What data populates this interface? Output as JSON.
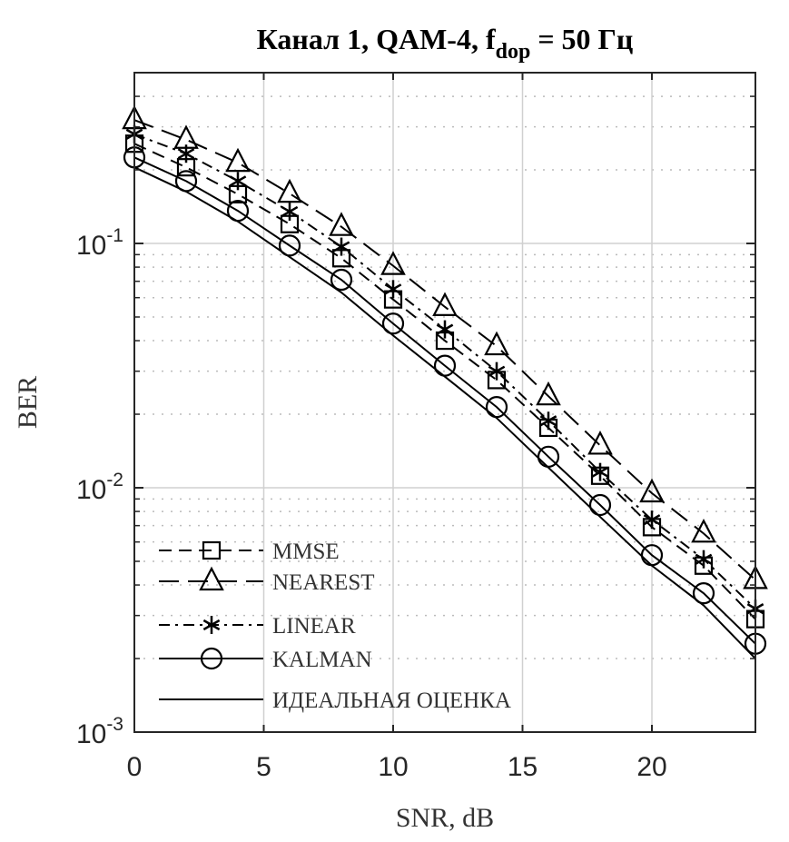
{
  "chart_data": {
    "type": "line",
    "title": {
      "main": "Канал 1, QAM-4, f",
      "sub": "dop",
      "rest": " = 50 Гц"
    },
    "xlabel": "SNR, dB",
    "ylabel": "BER",
    "xlim": [
      0,
      24
    ],
    "ylim": [
      0.001,
      0.5
    ],
    "yscale": "log",
    "grid": true,
    "x_ticks": [
      "0",
      "5",
      "10",
      "15",
      "20"
    ],
    "x_tick_values": [
      0,
      5,
      10,
      15,
      20
    ],
    "y_ticks": [
      {
        "base": "10",
        "exp": "-1",
        "value": 0.1
      },
      {
        "base": "10",
        "exp": "-2",
        "value": 0.01
      },
      {
        "base": "10",
        "exp": "-3",
        "value": 0.001
      }
    ],
    "legend_position": "bottom-left",
    "x": [
      0,
      2,
      4,
      6,
      8,
      10,
      12,
      14,
      16,
      18,
      20,
      22,
      24
    ],
    "series": [
      {
        "name": "MMSE",
        "marker": "square",
        "dash": "dashed",
        "values": [
          0.256,
          0.205,
          0.159,
          0.12,
          0.087,
          0.059,
          0.04,
          0.0276,
          0.0176,
          0.0112,
          0.0069,
          0.0048,
          0.0029
        ]
      },
      {
        "name": "NEAREST",
        "marker": "triangle",
        "dash": "longdash",
        "values": [
          0.32,
          0.266,
          0.214,
          0.16,
          0.117,
          0.081,
          0.055,
          0.038,
          0.0237,
          0.0149,
          0.0095,
          0.0065,
          0.0042
        ]
      },
      {
        "name": "LINEAR",
        "marker": "star",
        "dash": "dashdot",
        "values": [
          0.28,
          0.233,
          0.18,
          0.135,
          0.097,
          0.065,
          0.0445,
          0.03,
          0.0188,
          0.0116,
          0.0074,
          0.0051,
          0.0032
        ]
      },
      {
        "name": "KALMAN",
        "marker": "circle",
        "dash": "solid",
        "values": [
          0.225,
          0.18,
          0.136,
          0.098,
          0.071,
          0.047,
          0.0316,
          0.0214,
          0.0134,
          0.0085,
          0.0053,
          0.0037,
          0.0023
        ]
      },
      {
        "name": "ИДЕАЛЬНАЯ ОЦЕНКА",
        "marker": "none",
        "dash": "solid",
        "values": [
          0.205,
          0.163,
          0.123,
          0.088,
          0.063,
          0.042,
          0.0285,
          0.0193,
          0.0121,
          0.0076,
          0.0048,
          0.0033,
          0.002
        ]
      }
    ]
  }
}
